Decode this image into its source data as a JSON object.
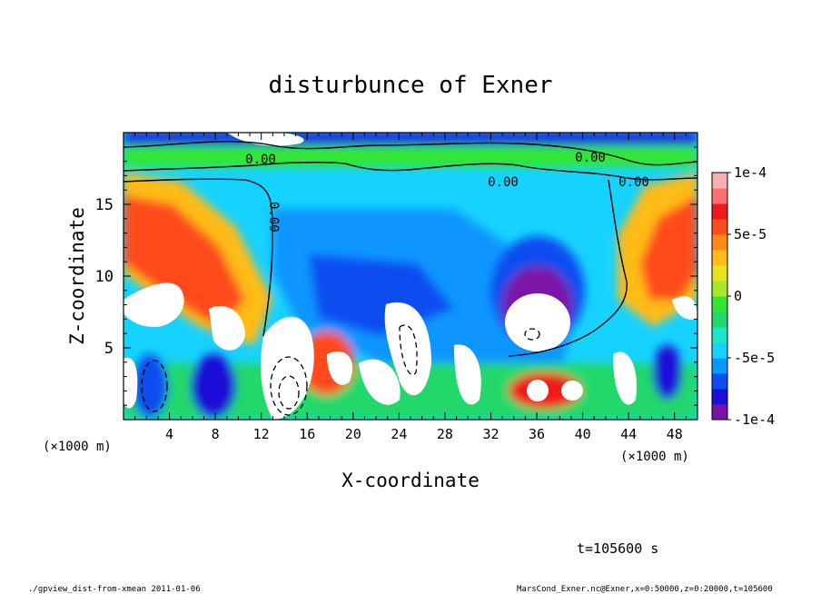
{
  "chart_data": {
    "type": "heatmap",
    "title": "disturbunce of Exner",
    "xlabel": "X-coordinate",
    "ylabel": "Z-coordinate",
    "x_unit_left": "(×1000 m)",
    "x_unit_right": "(×1000 m)",
    "xlim": [
      0,
      50
    ],
    "ylim": [
      0,
      20
    ],
    "x_ticks": [
      "4",
      "8",
      "12",
      "16",
      "20",
      "24",
      "28",
      "32",
      "36",
      "40",
      "44",
      "48"
    ],
    "x_tick_values": [
      4,
      8,
      12,
      16,
      20,
      24,
      28,
      32,
      36,
      40,
      44,
      48
    ],
    "y_ticks": [
      "5",
      "10",
      "15"
    ],
    "y_tick_values": [
      5,
      10,
      15
    ],
    "colorbar": {
      "range": [
        -0.0001,
        0.0001
      ],
      "tick_labels": [
        "1e-4",
        "5e-5",
        "0",
        "-5e-5",
        "-1e-4"
      ],
      "tick_values": [
        0.0001,
        5e-05,
        0,
        -5e-05,
        -0.0001
      ],
      "colors": [
        "#7b12a8",
        "#1a10d8",
        "#0a4ef0",
        "#0a96ff",
        "#16d2ff",
        "#18e8c8",
        "#22d86a",
        "#33e633",
        "#a8e629",
        "#e6e41a",
        "#ffbb18",
        "#ff8a14",
        "#ff4c1c",
        "#f01a1a",
        "#ff6f6f",
        "#f7b0b0"
      ]
    },
    "contour_labels": [
      "0.00",
      "0.00",
      "0.00",
      "0.00",
      "0.00"
    ],
    "time_label": "t=105600 s",
    "footer_left": "./gpview_dist-from-xmean  2011-01-06",
    "footer_right": "MarsCond_Exner.nc@Exner,x=0:50000,z=0:20000,t=105600"
  }
}
